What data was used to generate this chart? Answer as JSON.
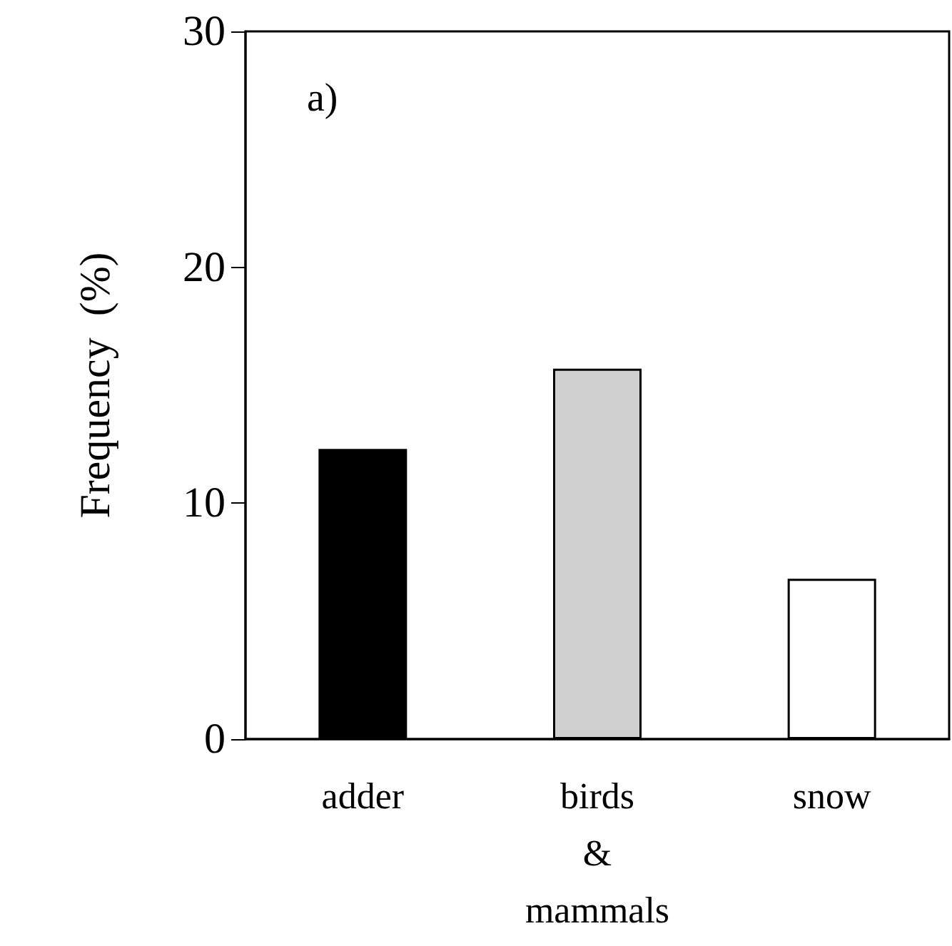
{
  "chart_data": {
    "type": "bar",
    "ylabel": "Frequency  (%)",
    "categories": [
      "adder",
      "birds & mammals",
      "snow"
    ],
    "values": [
      12.3,
      15.7,
      6.8
    ],
    "colors": [
      "#000000",
      "#d0d0d0",
      "#ffffff"
    ],
    "ylim": [
      0,
      30
    ],
    "yticks": [
      0,
      10,
      20,
      30
    ],
    "grid": false,
    "annotations": [
      "a)"
    ]
  }
}
